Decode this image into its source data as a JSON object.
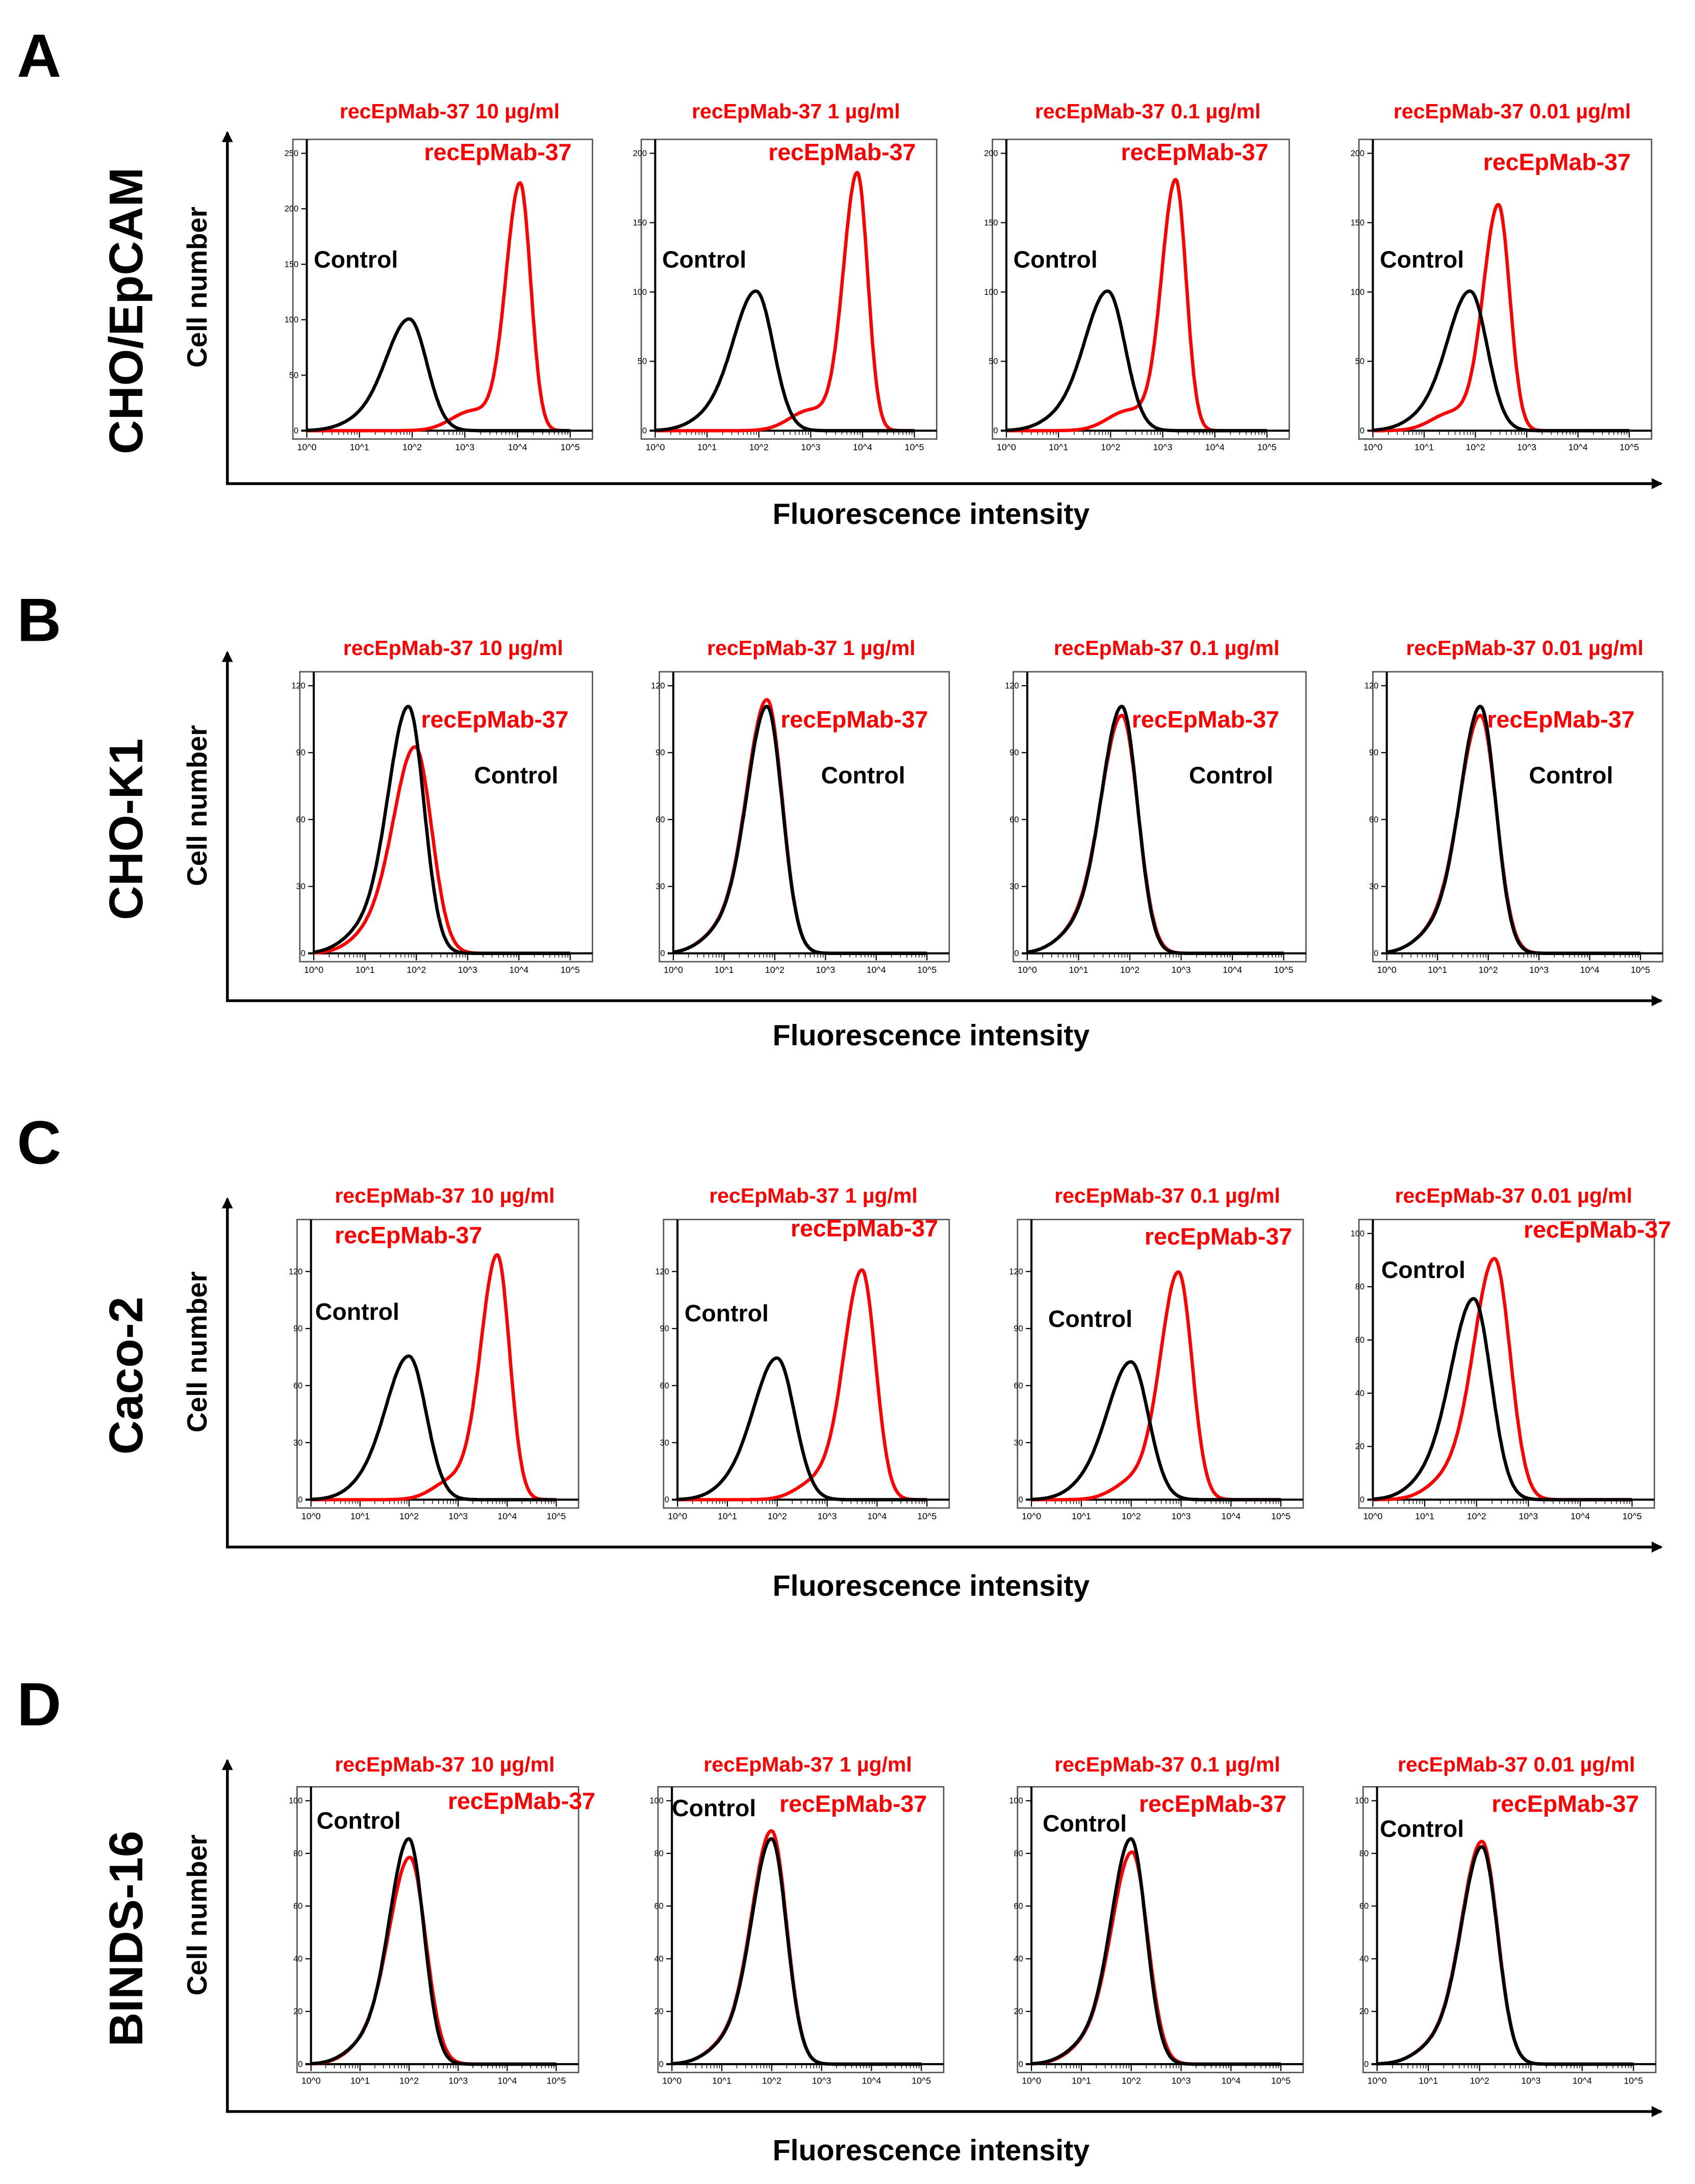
{
  "colors": {
    "control": "#000000",
    "antibody": "#ff0000"
  },
  "x_axis_label": "Fluorescence intensity",
  "y_axis_label": "Cell number",
  "x_tick_labels": [
    "10^0",
    "10^1",
    "10^2",
    "10^3",
    "10^4",
    "10^5"
  ],
  "curve_labels": {
    "control": "Control",
    "antibody": "recEpMab-37"
  },
  "chart_data": [
    {
      "type": "line",
      "panel_letter": "A",
      "cell_line": "CHO/EpCAM",
      "xlabel": "Fluorescence intensity",
      "ylabel": "Cell number",
      "xscale": "log",
      "xlim": [
        1,
        100000
      ],
      "panels": [
        {
          "title": "recEpMab-37 10 µg/ml",
          "ylim": [
            0,
            250
          ],
          "yticks": [
            0,
            50,
            100,
            150,
            200,
            250
          ],
          "series": [
            {
              "name": "Control",
              "peak_log10": 1.95,
              "peak_count": 100,
              "width_log10": 0.33
            },
            {
              "name": "recEpMab-37",
              "peak_log10": 4.05,
              "peak_count": 222,
              "width_log10": 0.2
            }
          ]
        },
        {
          "title": "recEpMab-37  1 µg/ml",
          "ylim": [
            0,
            200
          ],
          "yticks": [
            0,
            50,
            100,
            150,
            200
          ],
          "series": [
            {
              "name": "Control",
              "peak_log10": 1.95,
              "peak_count": 100,
              "width_log10": 0.33
            },
            {
              "name": "recEpMab-37",
              "peak_log10": 3.9,
              "peak_count": 185,
              "width_log10": 0.2
            }
          ]
        },
        {
          "title": "recEpMab-37  0.1 µg/ml",
          "ylim": [
            0,
            200
          ],
          "yticks": [
            0,
            50,
            100,
            150,
            200
          ],
          "series": [
            {
              "name": "Control",
              "peak_log10": 1.95,
              "peak_count": 100,
              "width_log10": 0.33
            },
            {
              "name": "recEpMab-37",
              "peak_log10": 3.25,
              "peak_count": 180,
              "width_log10": 0.2
            }
          ]
        },
        {
          "title": "recEpMab-37  0.01 µg/ml",
          "ylim": [
            0,
            200
          ],
          "yticks": [
            0,
            50,
            100,
            150,
            200
          ],
          "series": [
            {
              "name": "Control",
              "peak_log10": 1.9,
              "peak_count": 100,
              "width_log10": 0.33
            },
            {
              "name": "recEpMab-37",
              "peak_log10": 2.45,
              "peak_count": 162,
              "width_log10": 0.22
            }
          ]
        }
      ]
    },
    {
      "type": "line",
      "panel_letter": "B",
      "cell_line": "CHO-K1",
      "xlabel": "Fluorescence intensity",
      "ylabel": "Cell number",
      "xscale": "log",
      "xlim": [
        1,
        100000
      ],
      "panels": [
        {
          "title": "recEpMab-37 10 µg/ml",
          "ylim": [
            0,
            120
          ],
          "yticks": [
            0,
            30,
            60,
            90,
            120
          ],
          "series": [
            {
              "name": "Control",
              "peak_log10": 1.85,
              "peak_count": 110,
              "width_log10": 0.3
            },
            {
              "name": "recEpMab-37",
              "peak_log10": 1.98,
              "peak_count": 92,
              "width_log10": 0.32
            }
          ]
        },
        {
          "title": "recEpMab-37  1 µg/ml",
          "ylim": [
            0,
            120
          ],
          "yticks": [
            0,
            30,
            60,
            90,
            120
          ],
          "series": [
            {
              "name": "Control",
              "peak_log10": 1.85,
              "peak_count": 110,
              "width_log10": 0.3
            },
            {
              "name": "recEpMab-37",
              "peak_log10": 1.85,
              "peak_count": 113,
              "width_log10": 0.3
            }
          ]
        },
        {
          "title": "recEpMab-37  0.1 µg/ml",
          "ylim": [
            0,
            120
          ],
          "yticks": [
            0,
            30,
            60,
            90,
            120
          ],
          "series": [
            {
              "name": "Control",
              "peak_log10": 1.85,
              "peak_count": 110,
              "width_log10": 0.3
            },
            {
              "name": "recEpMab-37",
              "peak_log10": 1.85,
              "peak_count": 106,
              "width_log10": 0.31
            }
          ]
        },
        {
          "title": "recEpMab-37 0.01 µg/ml",
          "ylim": [
            0,
            120
          ],
          "yticks": [
            0,
            30,
            60,
            90,
            120
          ],
          "series": [
            {
              "name": "Control",
              "peak_log10": 1.85,
              "peak_count": 110,
              "width_log10": 0.3
            },
            {
              "name": "recEpMab-37",
              "peak_log10": 1.85,
              "peak_count": 106,
              "width_log10": 0.31
            }
          ]
        }
      ]
    },
    {
      "type": "line",
      "panel_letter": "C",
      "cell_line": "Caco-2",
      "xlabel": "Fluorescence intensity",
      "ylabel": "Cell number",
      "xscale": "log",
      "xlim": [
        1,
        100000
      ],
      "panels": [
        {
          "title": "recEpMab-37 10 µg/ml",
          "ylim": [
            0,
            140
          ],
          "yticks": [
            0,
            30,
            60,
            90,
            120
          ],
          "series": [
            {
              "name": "Control",
              "peak_log10": 2.0,
              "peak_count": 75,
              "width_log10": 0.35
            },
            {
              "name": "recEpMab-37",
              "peak_log10": 3.8,
              "peak_count": 128,
              "width_log10": 0.25
            }
          ]
        },
        {
          "title": "recEpMab-37  1 µg/ml",
          "ylim": [
            0,
            140
          ],
          "yticks": [
            0,
            30,
            60,
            90,
            120
          ],
          "series": [
            {
              "name": "Control",
              "peak_log10": 2.0,
              "peak_count": 74,
              "width_log10": 0.35
            },
            {
              "name": "recEpMab-37",
              "peak_log10": 3.7,
              "peak_count": 120,
              "width_log10": 0.27
            }
          ]
        },
        {
          "title": "recEpMab-37  0.1 µg/ml",
          "ylim": [
            0,
            140
          ],
          "yticks": [
            0,
            30,
            60,
            90,
            120
          ],
          "series": [
            {
              "name": "Control",
              "peak_log10": 2.0,
              "peak_count": 72,
              "width_log10": 0.35
            },
            {
              "name": "recEpMab-37",
              "peak_log10": 2.95,
              "peak_count": 119,
              "width_log10": 0.27
            }
          ]
        },
        {
          "title": "recEpMab-37 0.01 µg/ml",
          "ylim": [
            0,
            100
          ],
          "yticks": [
            0,
            20,
            40,
            60,
            80,
            100
          ],
          "series": [
            {
              "name": "Control",
              "peak_log10": 1.95,
              "peak_count": 75,
              "width_log10": 0.33
            },
            {
              "name": "recEpMab-37",
              "peak_log10": 2.35,
              "peak_count": 90,
              "width_log10": 0.3
            }
          ]
        }
      ]
    },
    {
      "type": "line",
      "panel_letter": "D",
      "cell_line": "BINDS-16",
      "xlabel": "Fluorescence intensity",
      "ylabel": "Cell number",
      "xscale": "log",
      "xlim": [
        1,
        100000
      ],
      "panels": [
        {
          "title": "recEpMab-37 10 µg/ml",
          "ylim": [
            0,
            100
          ],
          "yticks": [
            0,
            20,
            40,
            60,
            80,
            100
          ],
          "series": [
            {
              "name": "Control",
              "peak_log10": 2.0,
              "peak_count": 85,
              "width_log10": 0.3
            },
            {
              "name": "recEpMab-37",
              "peak_log10": 2.02,
              "peak_count": 78,
              "width_log10": 0.32
            }
          ]
        },
        {
          "title": "recEpMab-37  1 µg/ml",
          "ylim": [
            0,
            100
          ],
          "yticks": [
            0,
            20,
            40,
            60,
            80,
            100
          ],
          "series": [
            {
              "name": "Control",
              "peak_log10": 2.0,
              "peak_count": 85,
              "width_log10": 0.3
            },
            {
              "name": "recEpMab-37",
              "peak_log10": 2.0,
              "peak_count": 88,
              "width_log10": 0.3
            }
          ]
        },
        {
          "title": "recEpMab-37  0.1 µg/ml",
          "ylim": [
            0,
            100
          ],
          "yticks": [
            0,
            20,
            40,
            60,
            80,
            100
          ],
          "series": [
            {
              "name": "Control",
              "peak_log10": 2.0,
              "peak_count": 85,
              "width_log10": 0.3
            },
            {
              "name": "recEpMab-37",
              "peak_log10": 2.02,
              "peak_count": 80,
              "width_log10": 0.31
            }
          ]
        },
        {
          "title": "recEpMab-37 0.01 µg/ml",
          "ylim": [
            0,
            100
          ],
          "yticks": [
            0,
            20,
            40,
            60,
            80,
            100
          ],
          "series": [
            {
              "name": "Control",
              "peak_log10": 2.05,
              "peak_count": 82,
              "width_log10": 0.3
            },
            {
              "name": "recEpMab-37",
              "peak_log10": 2.05,
              "peak_count": 84,
              "width_log10": 0.3
            }
          ]
        }
      ]
    }
  ]
}
